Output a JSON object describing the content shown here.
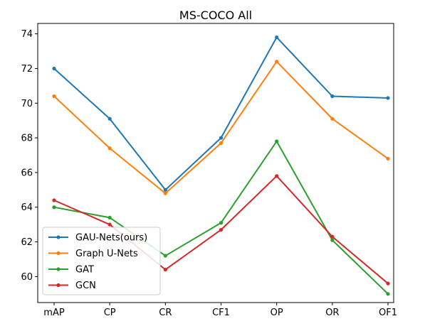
{
  "chart_data": {
    "type": "line",
    "title": "MS-COCO All",
    "xlabel": "",
    "ylabel": "",
    "categories": [
      "mAP",
      "CP",
      "CR",
      "CF1",
      "OP",
      "OR",
      "OF1"
    ],
    "ylim": [
      58.5,
      74.6
    ],
    "yticks": [
      60,
      62,
      64,
      66,
      68,
      70,
      72,
      74
    ],
    "grid": false,
    "legend_position": "lower-left",
    "series": [
      {
        "name": "GAU-Nets(ours)",
        "color": "#1f77b4",
        "values": [
          72.0,
          69.1,
          65.0,
          68.0,
          73.8,
          70.4,
          70.3
        ]
      },
      {
        "name": "Graph U-Nets",
        "color": "#ff7f0e",
        "values": [
          70.4,
          67.4,
          64.8,
          67.7,
          72.4,
          69.1,
          66.8
        ]
      },
      {
        "name": "GAT",
        "color": "#2ca02c",
        "values": [
          64.0,
          63.4,
          61.2,
          63.1,
          67.8,
          62.1,
          59.0
        ]
      },
      {
        "name": "GCN",
        "color": "#d62728",
        "values": [
          64.4,
          63.0,
          60.4,
          62.7,
          65.8,
          62.3,
          59.6
        ]
      }
    ]
  }
}
